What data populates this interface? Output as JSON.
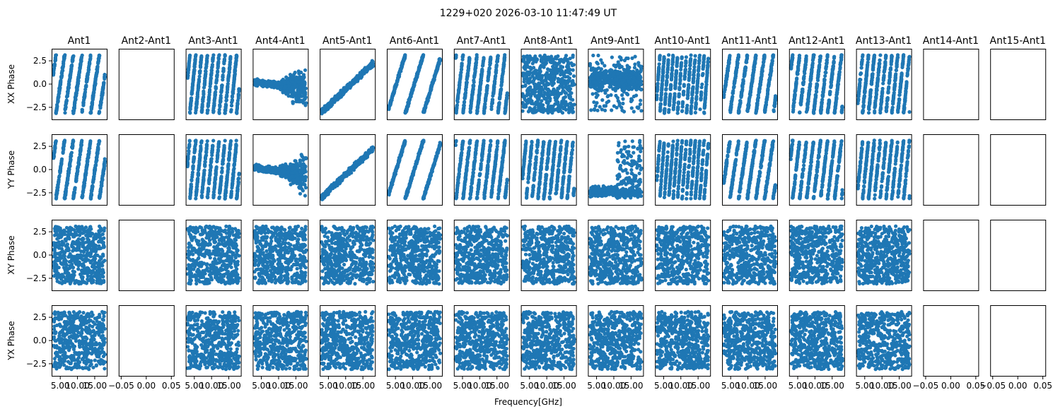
{
  "chart_data": {
    "type": "scatter",
    "title": "1229+020 2026-03-10 11:47:49 UT",
    "xlabel": "Frequency[GHz]",
    "columns": [
      "Ant1",
      "Ant2-Ant1",
      "Ant3-Ant1",
      "Ant4-Ant1",
      "Ant5-Ant1",
      "Ant6-Ant1",
      "Ant7-Ant1",
      "Ant8-Ant1",
      "Ant9-Ant1",
      "Ant10-Ant1",
      "Ant11-Ant1",
      "Ant12-Ant1",
      "Ant13-Ant1",
      "Ant14-Ant1",
      "Ant15-Ant1"
    ],
    "rows": [
      "XX Phase",
      "YY Phase",
      "XY Phase",
      "YX Phase"
    ],
    "ylim": [
      -3.8,
      3.8
    ],
    "yticks": [
      -2.5,
      0.0,
      2.5
    ],
    "ytick_labels": [
      "−2.5",
      "0.0",
      "2.5"
    ],
    "xlim_data": [
      2.5,
      18.5
    ],
    "xticks_data": [
      5.0,
      10.0,
      15.0
    ],
    "xtick_labels_data": [
      "5.00",
      "10.00",
      "15.00"
    ],
    "xlim_empty": [
      -0.055,
      0.055
    ],
    "xticks_empty": [
      -0.05,
      0.0,
      0.05
    ],
    "xtick_labels_empty": [
      "−0.05",
      "0.00",
      "0.05"
    ],
    "color": "#1f77b4",
    "empty_columns": [
      1,
      13,
      14
    ],
    "patterns": {
      "XX Phase": [
        "steep_wrap",
        "empty",
        "steep_wrap",
        "flat_then_spread",
        "linear_rise",
        "fast_wrap",
        "steep_wrap",
        "random",
        "dense_upper",
        "steep_wrap",
        "steep_wrap",
        "steep_wrap",
        "steep_wrap",
        "empty",
        "empty"
      ],
      "YY Phase": [
        "steep_wrap",
        "empty",
        "steep_wrap",
        "flat_then_spread",
        "linear_rise",
        "fast_wrap",
        "steep_wrap",
        "steep_wrap",
        "low_band",
        "steep_wrap",
        "steep_wrap",
        "steep_wrap",
        "steep_wrap",
        "empty",
        "empty"
      ],
      "XY Phase": [
        "random",
        "empty",
        "random",
        "random",
        "random",
        "random",
        "random",
        "random",
        "random",
        "random",
        "random",
        "random",
        "random",
        "empty",
        "empty"
      ],
      "YX Phase": [
        "random",
        "empty",
        "random",
        "random",
        "random",
        "random",
        "random",
        "random",
        "random",
        "random",
        "random",
        "random",
        "random",
        "empty",
        "empty"
      ]
    }
  }
}
